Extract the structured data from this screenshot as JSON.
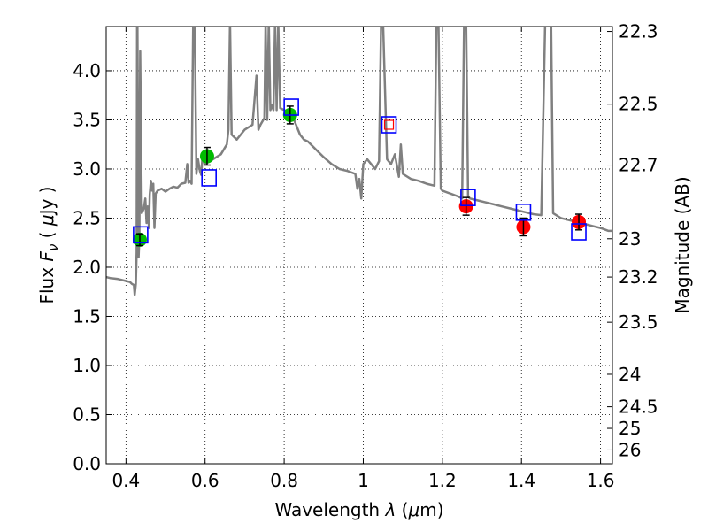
{
  "chart_data": {
    "type": "scatter",
    "title": "",
    "xlabel": "Wavelength  λ (μm)",
    "ylabel": "Flux  F_ν  ( μJy )",
    "ylabel_right": "Magnitude (AB)",
    "xlim": [
      0.35,
      1.63
    ],
    "ylim": [
      0.0,
      4.45
    ],
    "grid": true,
    "grid_style": "dotted",
    "x_ticks": [
      {
        "value": 0.4,
        "label": "0.4"
      },
      {
        "value": 0.6,
        "label": "0.6"
      },
      {
        "value": 0.8,
        "label": "0.8"
      },
      {
        "value": 1.0,
        "label": "1"
      },
      {
        "value": 1.2,
        "label": "1.2"
      },
      {
        "value": 1.4,
        "label": "1.4"
      },
      {
        "value": 1.6,
        "label": "1.6"
      }
    ],
    "y_ticks": [
      {
        "value": 0.0,
        "label": "0.0"
      },
      {
        "value": 0.5,
        "label": "0.5"
      },
      {
        "value": 1.0,
        "label": "1.0"
      },
      {
        "value": 1.5,
        "label": "1.5"
      },
      {
        "value": 2.0,
        "label": "2.0"
      },
      {
        "value": 2.5,
        "label": "2.5"
      },
      {
        "value": 3.0,
        "label": "3.0"
      },
      {
        "value": 3.5,
        "label": "3.5"
      },
      {
        "value": 4.0,
        "label": "4.0"
      }
    ],
    "right_ticks": [
      {
        "flux": 4.4,
        "label": "22.3"
      },
      {
        "flux": 3.66,
        "label": "22.5"
      },
      {
        "flux": 3.04,
        "label": "22.7"
      },
      {
        "flux": 2.29,
        "label": "23"
      },
      {
        "flux": 1.9,
        "label": "23.2"
      },
      {
        "flux": 1.44,
        "label": "23.5"
      },
      {
        "flux": 0.91,
        "label": "24"
      },
      {
        "flux": 0.58,
        "label": "24.5"
      },
      {
        "flux": 0.36,
        "label": "25"
      },
      {
        "flux": 0.14,
        "label": "26"
      }
    ],
    "series": [
      {
        "kind": "line",
        "color": "#808080",
        "x": [
          0.35,
          0.36,
          0.38,
          0.4,
          0.41,
          0.415,
          0.42,
          0.422,
          0.425,
          0.427,
          0.428,
          0.429,
          0.432,
          0.434,
          0.436,
          0.44,
          0.445,
          0.449,
          0.452,
          0.455,
          0.458,
          0.46,
          0.463,
          0.466,
          0.469,
          0.472,
          0.475,
          0.48,
          0.49,
          0.5,
          0.51,
          0.52,
          0.53,
          0.54,
          0.55,
          0.555,
          0.558,
          0.562,
          0.566,
          0.57,
          0.574,
          0.578,
          0.582,
          0.587,
          0.59,
          0.593,
          0.6,
          0.62,
          0.64,
          0.655,
          0.659,
          0.663,
          0.667,
          0.68,
          0.7,
          0.72,
          0.73,
          0.735,
          0.74,
          0.75,
          0.753,
          0.757,
          0.761,
          0.765,
          0.769,
          0.773,
          0.777,
          0.781,
          0.785,
          0.79,
          0.8,
          0.81,
          0.82,
          0.83,
          0.84,
          0.85,
          0.86,
          0.88,
          0.9,
          0.92,
          0.94,
          0.96,
          0.98,
          0.985,
          0.99,
          0.995,
          1.0,
          1.01,
          1.02,
          1.03,
          1.04,
          1.045,
          1.05,
          1.06,
          1.07,
          1.08,
          1.09,
          1.095,
          1.1,
          1.12,
          1.14,
          1.16,
          1.18,
          1.185,
          1.19,
          1.196,
          1.2,
          1.22,
          1.24,
          1.25,
          1.255,
          1.26,
          1.265,
          1.27,
          1.29,
          1.31,
          1.33,
          1.35,
          1.37,
          1.39,
          1.41,
          1.43,
          1.45,
          1.46,
          1.465,
          1.47,
          1.475,
          1.48,
          1.5,
          1.52,
          1.54,
          1.56,
          1.58,
          1.6,
          1.62,
          1.63
        ],
        "y": [
          1.9,
          1.89,
          1.88,
          1.86,
          1.85,
          1.83,
          1.82,
          1.72,
          1.83,
          2.15,
          4.5,
          4.5,
          2.1,
          2.3,
          4.2,
          2.55,
          2.6,
          2.7,
          2.45,
          2.62,
          2.4,
          2.74,
          2.88,
          2.78,
          2.85,
          2.4,
          2.75,
          2.78,
          2.8,
          2.77,
          2.8,
          2.82,
          2.81,
          2.85,
          2.86,
          3.05,
          2.86,
          2.88,
          2.85,
          4.5,
          4.5,
          2.95,
          3.1,
          2.98,
          2.94,
          3.1,
          3.05,
          3.1,
          3.15,
          3.25,
          3.4,
          4.5,
          3.35,
          3.3,
          3.4,
          3.45,
          3.95,
          3.4,
          3.45,
          3.52,
          4.5,
          3.5,
          4.5,
          3.6,
          3.65,
          3.6,
          4.5,
          3.6,
          4.5,
          3.62,
          3.6,
          3.58,
          3.55,
          3.45,
          3.35,
          3.3,
          3.28,
          3.2,
          3.12,
          3.05,
          3.0,
          2.98,
          2.95,
          2.8,
          2.9,
          2.7,
          3.05,
          3.1,
          3.05,
          3.0,
          3.08,
          4.5,
          4.5,
          3.1,
          3.05,
          3.15,
          2.92,
          3.25,
          2.95,
          2.9,
          2.88,
          2.85,
          2.83,
          4.5,
          4.5,
          2.8,
          2.78,
          2.75,
          2.72,
          2.7,
          4.5,
          4.5,
          2.72,
          2.7,
          2.68,
          2.66,
          2.64,
          2.62,
          2.6,
          2.58,
          2.56,
          2.54,
          2.53,
          4.5,
          4.5,
          4.5,
          4.5,
          2.55,
          2.5,
          2.48,
          2.46,
          2.44,
          2.42,
          2.4,
          2.37,
          2.37
        ]
      },
      {
        "name": "",
        "kind": "points",
        "marker": "circle",
        "color": "#00bb00",
        "x": [
          0.435,
          0.605,
          0.815
        ],
        "y": [
          2.28,
          3.13,
          3.55
        ],
        "yerr": [
          0.06,
          0.09,
          0.09
        ]
      },
      {
        "name": "",
        "kind": "points",
        "marker": "circle",
        "color": "#ff0000",
        "x": [
          1.26,
          1.405,
          1.545
        ],
        "y": [
          2.62,
          2.41,
          2.46
        ],
        "yerr": [
          0.09,
          0.09,
          0.08
        ]
      },
      {
        "name": "",
        "kind": "points",
        "marker": "open-square",
        "color": "#0000ff",
        "x": [
          0.437,
          0.61,
          0.818,
          1.065,
          1.265,
          1.405,
          1.545
        ],
        "y": [
          2.33,
          2.91,
          3.63,
          3.45,
          2.71,
          2.56,
          2.36
        ]
      },
      {
        "name": "",
        "kind": "points",
        "marker": "open-square-small",
        "color": "#ff0000",
        "x": [
          1.065
        ],
        "y": [
          3.45
        ]
      }
    ]
  }
}
